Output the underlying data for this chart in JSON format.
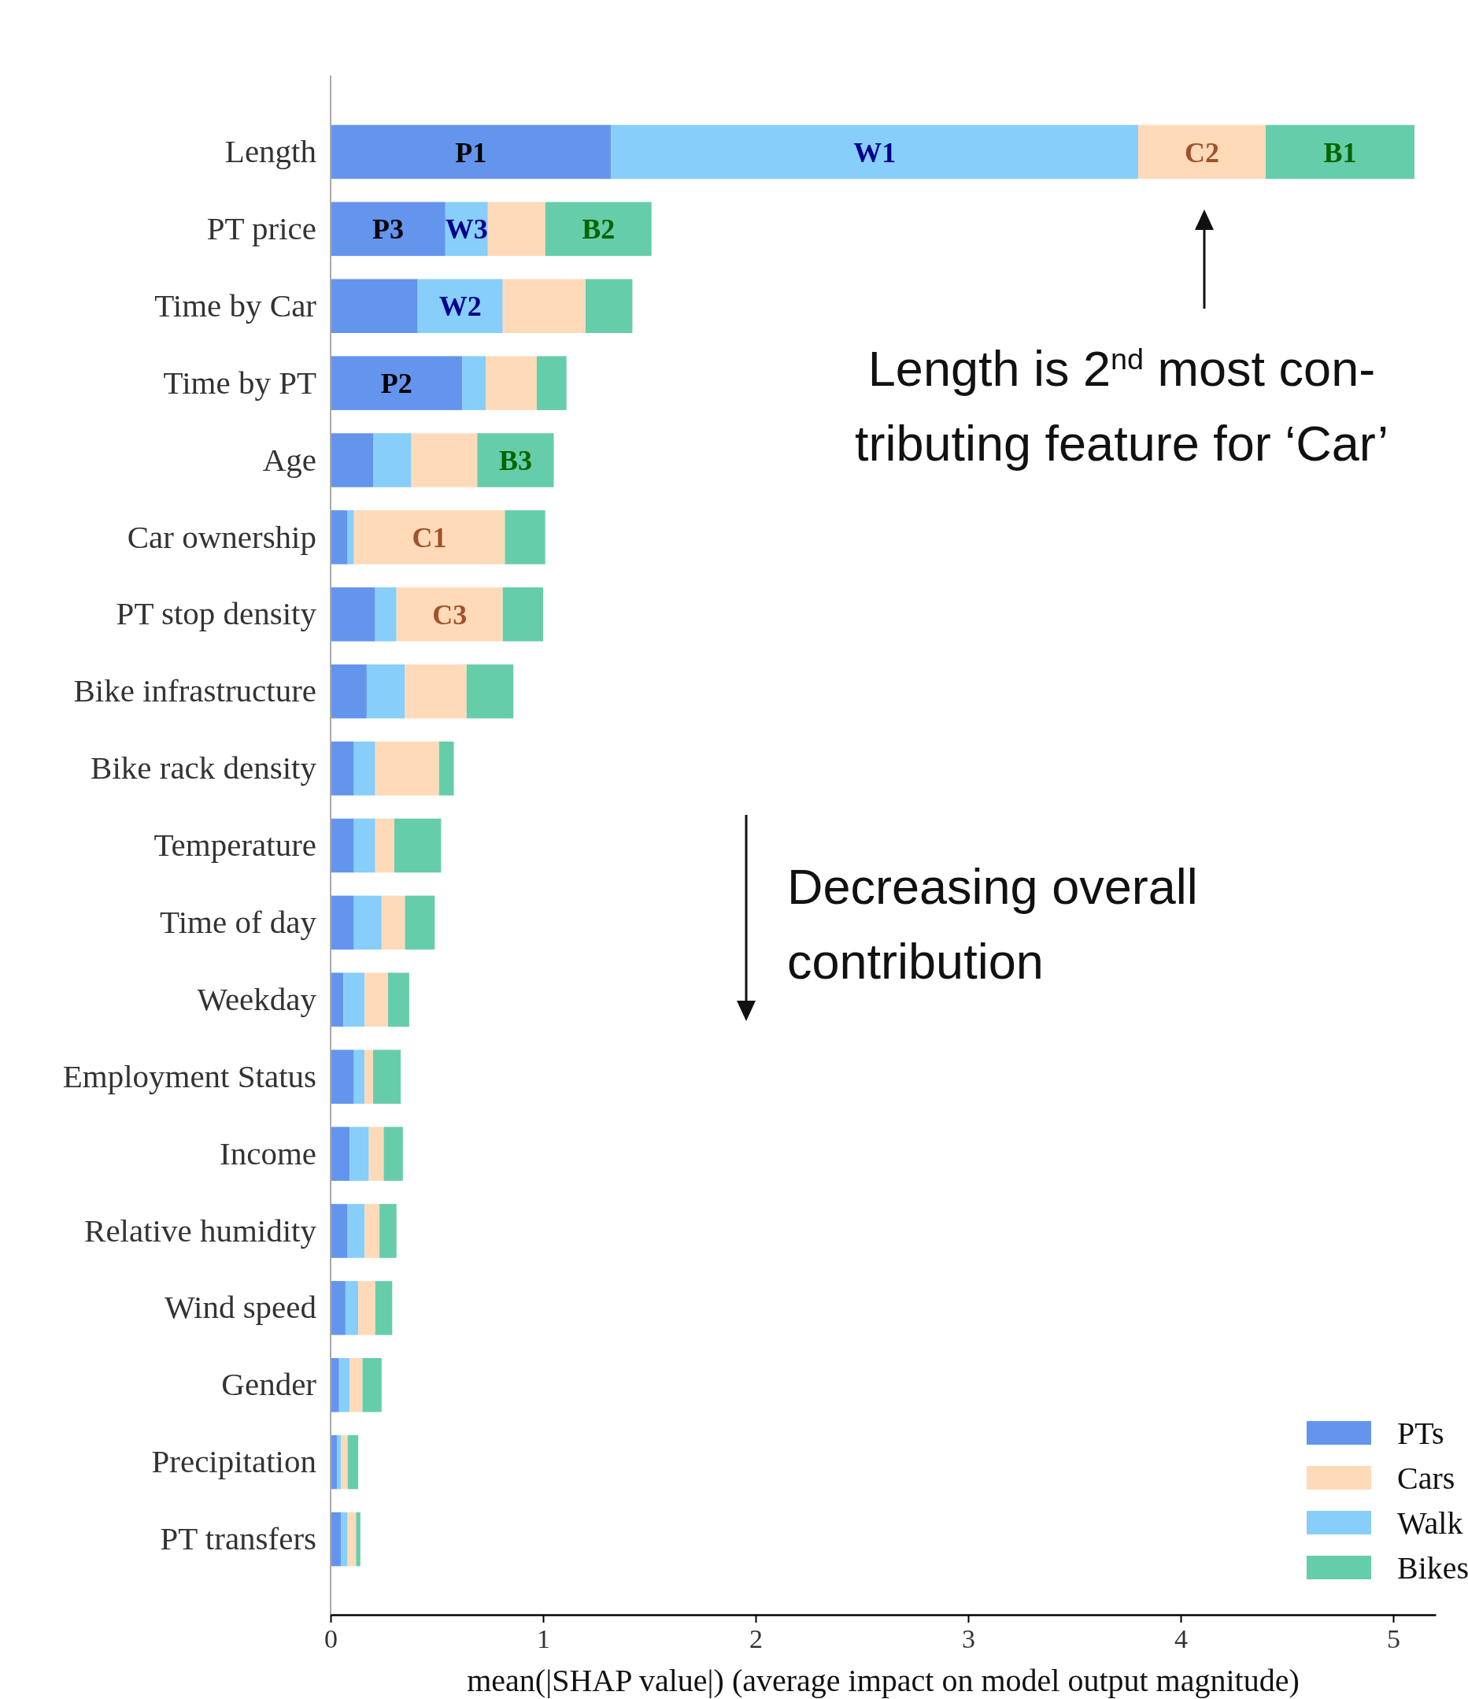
{
  "chart_data": {
    "type": "bar",
    "orientation": "horizontal",
    "stacked": true,
    "xlabel": "mean(|SHAP value|) (average impact on model output magnitude)",
    "categories": [
      "Length",
      "PT price",
      "Time by Car",
      "Time by PT",
      "Age",
      "Car ownership",
      "PT stop density",
      "Bike infrastructure",
      "Bike rack density",
      "Temperature",
      "Time of day",
      "Weekday",
      "Employment Status",
      "Income",
      "Relative humidity",
      "Wind speed",
      "Gender",
      "Precipitation",
      "PT transfers"
    ],
    "series": [
      {
        "name": "PTs",
        "color": "#6495ed",
        "values": [
          1.32,
          0.54,
          0.41,
          0.62,
          0.2,
          0.08,
          0.21,
          0.17,
          0.11,
          0.11,
          0.11,
          0.06,
          0.11,
          0.09,
          0.08,
          0.07,
          0.04,
          0.03,
          0.05
        ]
      },
      {
        "name": "Walk",
        "color": "#87cefa",
        "values": [
          2.48,
          0.2,
          0.4,
          0.11,
          0.18,
          0.03,
          0.1,
          0.18,
          0.1,
          0.1,
          0.13,
          0.1,
          0.05,
          0.09,
          0.08,
          0.06,
          0.05,
          0.02,
          0.03
        ]
      },
      {
        "name": "Cars",
        "color": "#ffdab9",
        "values": [
          0.6,
          0.27,
          0.39,
          0.24,
          0.31,
          0.71,
          0.5,
          0.29,
          0.3,
          0.09,
          0.11,
          0.11,
          0.04,
          0.07,
          0.07,
          0.08,
          0.06,
          0.03,
          0.04
        ]
      },
      {
        "name": "Bikes",
        "color": "#66cdaa",
        "values": [
          0.7,
          0.5,
          0.22,
          0.14,
          0.36,
          0.19,
          0.19,
          0.22,
          0.07,
          0.22,
          0.14,
          0.1,
          0.13,
          0.09,
          0.08,
          0.08,
          0.09,
          0.05,
          0.02
        ]
      }
    ],
    "xlim": [
      0,
      5.2
    ],
    "xticks": [
      0,
      1,
      2,
      3,
      4,
      5
    ],
    "legend": "bottom right",
    "grid": false,
    "annotations": [
      "Length is 2$^{nd}$ most con-tributing feature for ‘Car’",
      "Decreasing overall contribution",
      "P1",
      "W1",
      "C2",
      "B1",
      "P3",
      "W3",
      "B2",
      "W2",
      "P2",
      "B3",
      "C1",
      "C3"
    ]
  }
}
